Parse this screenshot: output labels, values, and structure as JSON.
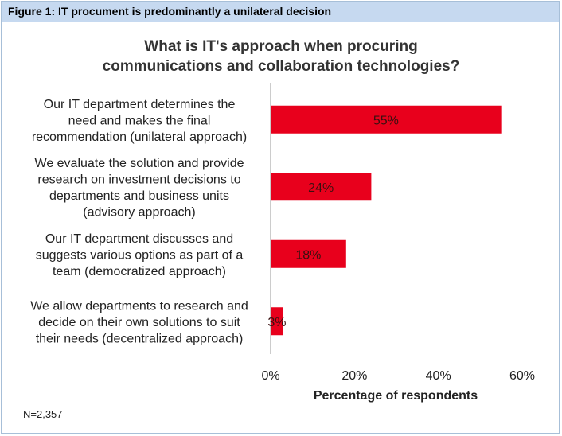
{
  "figure_caption": "Figure 1: IT procument is predominantly a unilateral decision",
  "note": "N=2,357",
  "colors": {
    "bar": "#e8001c",
    "header_bg": "#c6d9f0",
    "axis": "#999999"
  },
  "chart_data": {
    "type": "bar",
    "orientation": "horizontal",
    "title": [
      "What is IT's approach when procuring",
      "communications and collaboration technologies?"
    ],
    "xlabel": "Percentage of respondents",
    "ylabel": "",
    "xlim": [
      0,
      60
    ],
    "xticks": [
      "0%",
      "20%",
      "40%",
      "60%"
    ],
    "grid": false,
    "categories": [
      [
        "Our IT department determines the",
        "need and makes the final",
        "recommendation (unilateral approach)"
      ],
      [
        "We evaluate the solution and provide",
        "research on investment decisions to",
        "departments and business units",
        "(advisory approach)"
      ],
      [
        "Our IT department discusses and",
        "suggests various options as part of a",
        "team (democratized approach)"
      ],
      [
        "We allow departments to research and",
        "decide on their own solutions to suit",
        "their needs (decentralized approach)"
      ]
    ],
    "values": [
      55,
      24,
      18,
      3
    ],
    "value_labels": [
      "55%",
      "24%",
      "18%",
      "3%"
    ]
  }
}
